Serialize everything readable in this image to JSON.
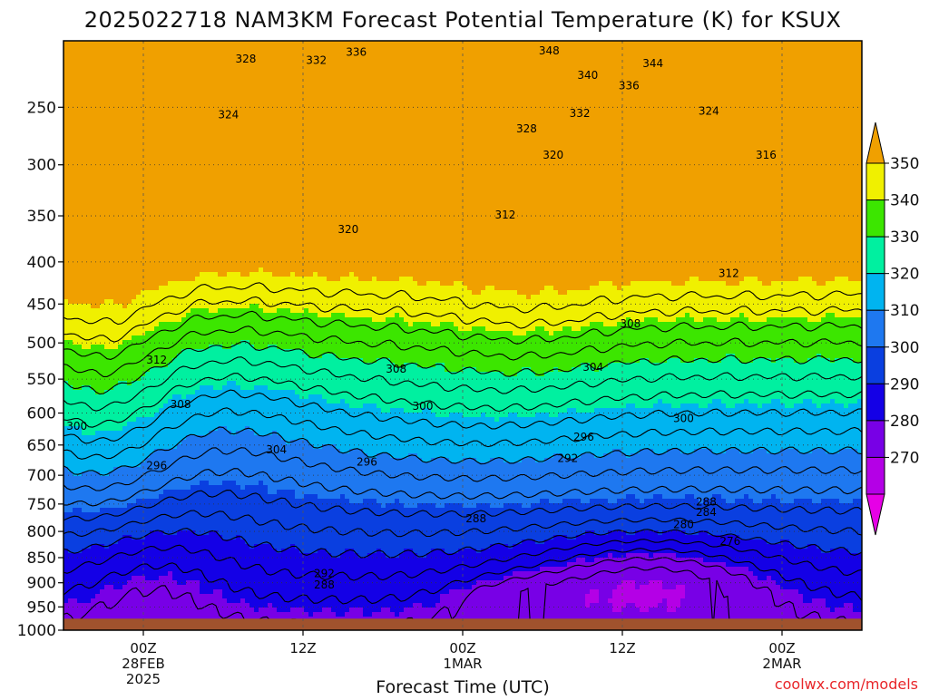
{
  "chart_data": {
    "type": "heatmap",
    "title": "2025022718 NAM3KM Forecast Potential Temperature (K) for KSUX",
    "xlabel": "Forecast Time (UTC)",
    "ylabel": "",
    "watermark": "coolwx.com/models",
    "x_ticks": [
      {
        "hour": 6,
        "lines": [
          "00Z",
          "28FEB",
          "2025"
        ]
      },
      {
        "hour": 18,
        "lines": [
          "12Z"
        ]
      },
      {
        "hour": 30,
        "lines": [
          "00Z",
          "1MAR"
        ]
      },
      {
        "hour": 42,
        "lines": [
          "12Z"
        ]
      },
      {
        "hour": 54,
        "lines": [
          "00Z",
          "2MAR"
        ]
      }
    ],
    "x_range_hours": [
      0,
      60
    ],
    "y_ticks": [
      250,
      300,
      350,
      400,
      450,
      500,
      550,
      600,
      650,
      700,
      750,
      800,
      850,
      900,
      950,
      1000
    ],
    "y_range_hpa": [
      200,
      1000
    ],
    "grid": true,
    "colorbar": {
      "bounds": [
        260,
        270,
        280,
        290,
        300,
        310,
        320,
        330,
        340,
        350,
        360
      ],
      "tick_labels": [
        "270",
        "280",
        "290",
        "300",
        "310",
        "320",
        "330",
        "340",
        "350"
      ],
      "colors": [
        "#e600e6",
        "#b400e6",
        "#7800e6",
        "#1400e6",
        "#0a3fe0",
        "#1e78f0",
        "#00b4f0",
        "#00f0a0",
        "#3ce600",
        "#f0f000",
        "#f0a000"
      ]
    },
    "contour_labels": [
      {
        "text": "328",
        "hour": 13.7,
        "p": 213
      },
      {
        "text": "332",
        "hour": 19.0,
        "p": 214
      },
      {
        "text": "336",
        "hour": 22.0,
        "p": 208
      },
      {
        "text": "348",
        "hour": 36.5,
        "p": 207
      },
      {
        "text": "344",
        "hour": 44.3,
        "p": 216
      },
      {
        "text": "340",
        "hour": 39.4,
        "p": 225
      },
      {
        "text": "336",
        "hour": 42.5,
        "p": 233
      },
      {
        "text": "332",
        "hour": 38.8,
        "p": 255
      },
      {
        "text": "328",
        "hour": 34.8,
        "p": 268
      },
      {
        "text": "324",
        "hour": 12.4,
        "p": 256
      },
      {
        "text": "324",
        "hour": 48.5,
        "p": 253
      },
      {
        "text": "320",
        "hour": 36.8,
        "p": 291
      },
      {
        "text": "316",
        "hour": 52.8,
        "p": 291
      },
      {
        "text": "312",
        "hour": 33.2,
        "p": 349
      },
      {
        "text": "320",
        "hour": 21.4,
        "p": 364
      },
      {
        "text": "312",
        "hour": 50.0,
        "p": 413
      },
      {
        "text": "308",
        "hour": 42.6,
        "p": 475
      },
      {
        "text": "312",
        "hour": 7.0,
        "p": 523
      },
      {
        "text": "308",
        "hour": 25.0,
        "p": 536
      },
      {
        "text": "304",
        "hour": 39.8,
        "p": 533
      },
      {
        "text": "308",
        "hour": 8.8,
        "p": 587
      },
      {
        "text": "300",
        "hour": 27.0,
        "p": 590
      },
      {
        "text": "300",
        "hour": 46.6,
        "p": 608
      },
      {
        "text": "300",
        "hour": 1.0,
        "p": 620
      },
      {
        "text": "296",
        "hour": 39.1,
        "p": 637
      },
      {
        "text": "304",
        "hour": 16.0,
        "p": 658
      },
      {
        "text": "292",
        "hour": 37.9,
        "p": 672
      },
      {
        "text": "296",
        "hour": 7.0,
        "p": 684
      },
      {
        "text": "296",
        "hour": 22.8,
        "p": 678
      },
      {
        "text": "288",
        "hour": 48.3,
        "p": 746
      },
      {
        "text": "284",
        "hour": 48.3,
        "p": 765
      },
      {
        "text": "288",
        "hour": 31.0,
        "p": 776
      },
      {
        "text": "280",
        "hour": 46.6,
        "p": 787
      },
      {
        "text": "276",
        "hour": 50.1,
        "p": 819
      },
      {
        "text": "292",
        "hour": 19.6,
        "p": 881
      },
      {
        "text": "288",
        "hour": 19.6,
        "p": 904
      }
    ]
  }
}
